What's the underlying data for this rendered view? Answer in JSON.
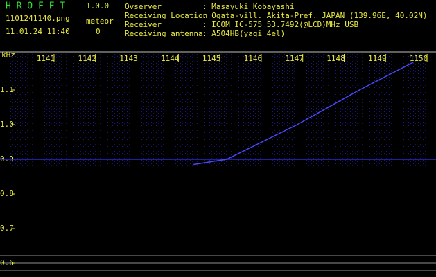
{
  "header": {
    "app_name": "H R O F F T",
    "version": "1.0.0",
    "filename": "1101241140.png",
    "datetime": "11.01.24 11:40",
    "count_label": "meteor",
    "count": 0,
    "fields": [
      {
        "label": "Ovserver",
        "value": ": Masayuki Kobayashi"
      },
      {
        "label": "Receiving Location",
        "value": ": Ogata-vill. Akita-Pref. JAPAN (139.96E, 40.02N)"
      },
      {
        "label": "Receiver",
        "value": ": ICOM IC-575 53.7492(@LCD)MHz USB"
      },
      {
        "label": "Receiving antenna",
        "value": ": A504HB(yagi 4el)"
      }
    ]
  },
  "chart_data": {
    "type": "spectrogram",
    "ylabel": "kHz",
    "xlim": [
      1139.83,
      1150.35
    ],
    "xticks": [
      1141,
      1142,
      1143,
      1144,
      1145,
      1146,
      1147,
      1148,
      1149,
      1150
    ],
    "ylim": [
      0.56,
      1.21
    ],
    "yticks": [
      1.1,
      {
        "value": 1,
        "label": "1.0"
      },
      0.9,
      0.8,
      0.7,
      0.6
    ],
    "series": [
      {
        "color": "#2a2ad0",
        "x": [
          1139.83,
          1150.35
        ],
        "values": [
          0.9,
          0.9
        ]
      },
      {
        "color": "#4848ff",
        "x": [
          1144.5,
          1145.3,
          1147.0,
          1148.5,
          1149.8
        ],
        "values": [
          0.885,
          0.9,
          1.0,
          1.1,
          1.18
        ]
      }
    ]
  }
}
